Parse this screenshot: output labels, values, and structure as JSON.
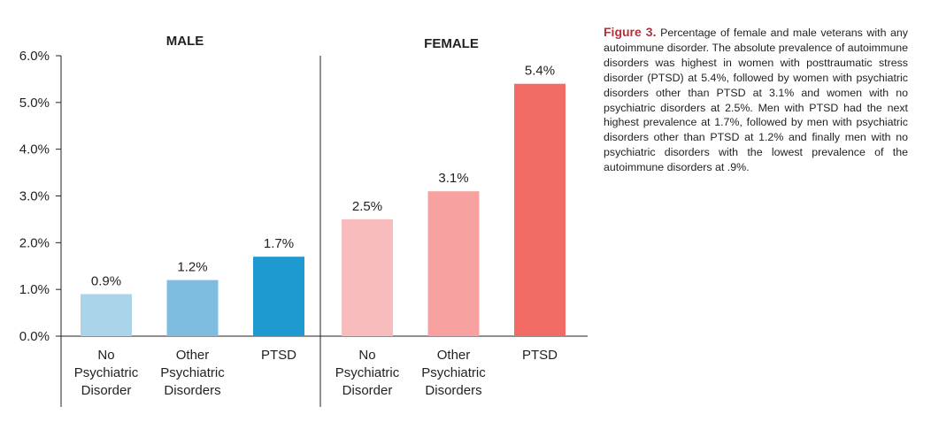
{
  "chart_data": {
    "type": "bar",
    "ylim": [
      0,
      6
    ],
    "yticks": [
      "0.0%",
      "1.0%",
      "2.0%",
      "3.0%",
      "4.0%",
      "5.0%",
      "6.0%"
    ],
    "groups": [
      {
        "title": "MALE",
        "categories": [
          [
            "No",
            "Psychiatric",
            "Disorder"
          ],
          [
            "Other",
            "Psychiatric",
            "Disorders"
          ],
          [
            "PTSD"
          ]
        ],
        "values": [
          0.9,
          1.2,
          1.7
        ],
        "labels": [
          "0.9%",
          "1.2%",
          "1.7%"
        ],
        "colors": [
          "#a9d4ea",
          "#7fbde0",
          "#1f9ad1"
        ]
      },
      {
        "title": "FEMALE",
        "categories": [
          [
            "No",
            "Psychiatric",
            "Disorder"
          ],
          [
            "Other",
            "Psychiatric",
            "Disorders"
          ],
          [
            "PTSD"
          ]
        ],
        "values": [
          2.5,
          3.1,
          5.4
        ],
        "labels": [
          "2.5%",
          "3.1%",
          "5.4%"
        ],
        "colors": [
          "#f9bcbc",
          "#f7a1a0",
          "#f26b65"
        ]
      }
    ],
    "grid": false
  },
  "caption": {
    "label": "Figure 3.",
    "text": "Percentage of female and male veterans with any autoimmune disorder. The absolute prevalence of autoimmune disorders was highest in women with posttraumatic stress disorder (PTSD) at 5.4%, followed by women with psychiatric disorders other than PTSD at 3.1% and women with no psychiatric disorders at 2.5%. Men with PTSD had the next highest prevalence at 1.7%, followed by men with psychiatric disorders other than PTSD at 1.2% and finally men with no psychiatric disorders with the lowest prevalence of the autoimmune disorders at .9%."
  }
}
